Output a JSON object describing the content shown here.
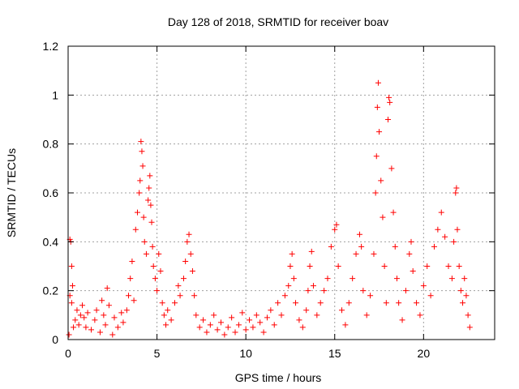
{
  "chart_data": {
    "type": "scatter",
    "title": "Day 128 of 2018, SRMTID for receiver boav",
    "xlabel": "GPS time / hours",
    "ylabel": "SRMTID / TECUs",
    "xlim": [
      0,
      24
    ],
    "ylim": [
      0,
      1.2
    ],
    "xticks": [
      0,
      5,
      10,
      15,
      20
    ],
    "xtick_labels": [
      "0",
      "5",
      "10",
      "15",
      "20"
    ],
    "yticks": [
      0,
      0.2,
      0.4,
      0.6,
      0.8,
      1,
      1.2
    ],
    "ytick_labels": [
      "0",
      "0.2",
      "0.4",
      "0.6",
      "0.8",
      "1",
      "1.2"
    ],
    "grid": true,
    "marker": "+",
    "color": "#ff0000",
    "series": [
      {
        "name": "SRMTID",
        "points": [
          [
            0.1,
            0.41
          ],
          [
            0.15,
            0.4
          ],
          [
            0.2,
            0.3
          ],
          [
            0.25,
            0.22
          ],
          [
            0.1,
            0.18
          ],
          [
            0.2,
            0.15
          ],
          [
            0.05,
            0.02
          ],
          [
            0.3,
            0.05
          ],
          [
            0.4,
            0.08
          ],
          [
            0.5,
            0.12
          ],
          [
            0.6,
            0.06
          ],
          [
            0.7,
            0.1
          ],
          [
            0.8,
            0.14
          ],
          [
            0.9,
            0.09
          ],
          [
            1.0,
            0.05
          ],
          [
            1.1,
            0.11
          ],
          [
            1.3,
            0.04
          ],
          [
            1.5,
            0.08
          ],
          [
            1.6,
            0.12
          ],
          [
            1.8,
            0.03
          ],
          [
            1.9,
            0.16
          ],
          [
            2.0,
            0.1
          ],
          [
            2.1,
            0.06
          ],
          [
            2.2,
            0.21
          ],
          [
            2.3,
            0.14
          ],
          [
            2.5,
            0.02
          ],
          [
            2.6,
            0.09
          ],
          [
            2.8,
            0.05
          ],
          [
            3.0,
            0.11
          ],
          [
            3.1,
            0.07
          ],
          [
            3.3,
            0.12
          ],
          [
            3.4,
            0.18
          ],
          [
            3.5,
            0.25
          ],
          [
            3.6,
            0.32
          ],
          [
            3.7,
            0.16
          ],
          [
            3.8,
            0.45
          ],
          [
            3.9,
            0.52
          ],
          [
            4.0,
            0.6
          ],
          [
            4.05,
            0.65
          ],
          [
            4.1,
            0.81
          ],
          [
            4.15,
            0.77
          ],
          [
            4.2,
            0.71
          ],
          [
            4.25,
            0.5
          ],
          [
            4.3,
            0.4
          ],
          [
            4.4,
            0.35
          ],
          [
            4.5,
            0.57
          ],
          [
            4.55,
            0.62
          ],
          [
            4.6,
            0.67
          ],
          [
            4.65,
            0.55
          ],
          [
            4.7,
            0.48
          ],
          [
            4.75,
            0.38
          ],
          [
            4.8,
            0.3
          ],
          [
            4.9,
            0.25
          ],
          [
            5.0,
            0.2
          ],
          [
            5.1,
            0.35
          ],
          [
            5.2,
            0.28
          ],
          [
            5.3,
            0.15
          ],
          [
            5.4,
            0.1
          ],
          [
            5.5,
            0.06
          ],
          [
            5.6,
            0.12
          ],
          [
            5.8,
            0.08
          ],
          [
            6.0,
            0.15
          ],
          [
            6.2,
            0.22
          ],
          [
            6.3,
            0.18
          ],
          [
            6.5,
            0.25
          ],
          [
            6.6,
            0.32
          ],
          [
            6.7,
            0.4
          ],
          [
            6.8,
            0.43
          ],
          [
            6.9,
            0.35
          ],
          [
            7.0,
            0.28
          ],
          [
            7.1,
            0.18
          ],
          [
            7.2,
            0.1
          ],
          [
            7.4,
            0.05
          ],
          [
            7.6,
            0.08
          ],
          [
            7.8,
            0.03
          ],
          [
            8.0,
            0.06
          ],
          [
            8.2,
            0.1
          ],
          [
            8.4,
            0.04
          ],
          [
            8.6,
            0.07
          ],
          [
            8.8,
            0.02
          ],
          [
            9.0,
            0.05
          ],
          [
            9.2,
            0.09
          ],
          [
            9.4,
            0.03
          ],
          [
            9.6,
            0.06
          ],
          [
            9.8,
            0.11
          ],
          [
            10.0,
            0.04
          ],
          [
            10.2,
            0.08
          ],
          [
            10.4,
            0.05
          ],
          [
            10.6,
            0.1
          ],
          [
            10.8,
            0.07
          ],
          [
            11.0,
            0.03
          ],
          [
            11.2,
            0.09
          ],
          [
            11.4,
            0.12
          ],
          [
            11.6,
            0.06
          ],
          [
            11.8,
            0.15
          ],
          [
            12.0,
            0.1
          ],
          [
            12.2,
            0.18
          ],
          [
            12.4,
            0.22
          ],
          [
            12.5,
            0.3
          ],
          [
            12.6,
            0.35
          ],
          [
            12.7,
            0.25
          ],
          [
            12.8,
            0.15
          ],
          [
            13.0,
            0.08
          ],
          [
            13.2,
            0.05
          ],
          [
            13.4,
            0.12
          ],
          [
            13.5,
            0.2
          ],
          [
            13.6,
            0.3
          ],
          [
            13.7,
            0.36
          ],
          [
            13.8,
            0.22
          ],
          [
            14.0,
            0.1
          ],
          [
            14.2,
            0.15
          ],
          [
            14.4,
            0.2
          ],
          [
            14.6,
            0.25
          ],
          [
            14.8,
            0.38
          ],
          [
            15.0,
            0.45
          ],
          [
            15.1,
            0.47
          ],
          [
            15.2,
            0.3
          ],
          [
            15.4,
            0.12
          ],
          [
            15.6,
            0.06
          ],
          [
            15.8,
            0.15
          ],
          [
            16.0,
            0.25
          ],
          [
            16.2,
            0.35
          ],
          [
            16.4,
            0.43
          ],
          [
            16.5,
            0.38
          ],
          [
            16.6,
            0.2
          ],
          [
            16.8,
            0.1
          ],
          [
            17.0,
            0.18
          ],
          [
            17.2,
            0.35
          ],
          [
            17.3,
            0.6
          ],
          [
            17.35,
            0.75
          ],
          [
            17.4,
            0.95
          ],
          [
            17.45,
            1.05
          ],
          [
            17.5,
            0.85
          ],
          [
            17.6,
            0.65
          ],
          [
            17.7,
            0.5
          ],
          [
            17.8,
            0.3
          ],
          [
            17.9,
            0.15
          ],
          [
            18.0,
            0.9
          ],
          [
            18.05,
            0.99
          ],
          [
            18.1,
            0.97
          ],
          [
            18.2,
            0.7
          ],
          [
            18.3,
            0.52
          ],
          [
            18.4,
            0.38
          ],
          [
            18.5,
            0.25
          ],
          [
            18.6,
            0.15
          ],
          [
            18.8,
            0.08
          ],
          [
            19.0,
            0.2
          ],
          [
            19.2,
            0.35
          ],
          [
            19.3,
            0.4
          ],
          [
            19.4,
            0.28
          ],
          [
            19.6,
            0.15
          ],
          [
            19.8,
            0.1
          ],
          [
            20.0,
            0.22
          ],
          [
            20.2,
            0.3
          ],
          [
            20.4,
            0.18
          ],
          [
            20.6,
            0.38
          ],
          [
            20.8,
            0.45
          ],
          [
            21.0,
            0.52
          ],
          [
            21.2,
            0.42
          ],
          [
            21.4,
            0.3
          ],
          [
            21.6,
            0.25
          ],
          [
            21.7,
            0.4
          ],
          [
            21.8,
            0.6
          ],
          [
            21.85,
            0.62
          ],
          [
            21.9,
            0.45
          ],
          [
            22.0,
            0.3
          ],
          [
            22.1,
            0.2
          ],
          [
            22.2,
            0.15
          ],
          [
            22.3,
            0.25
          ],
          [
            22.4,
            0.18
          ],
          [
            22.5,
            0.1
          ],
          [
            22.6,
            0.05
          ]
        ]
      }
    ]
  }
}
